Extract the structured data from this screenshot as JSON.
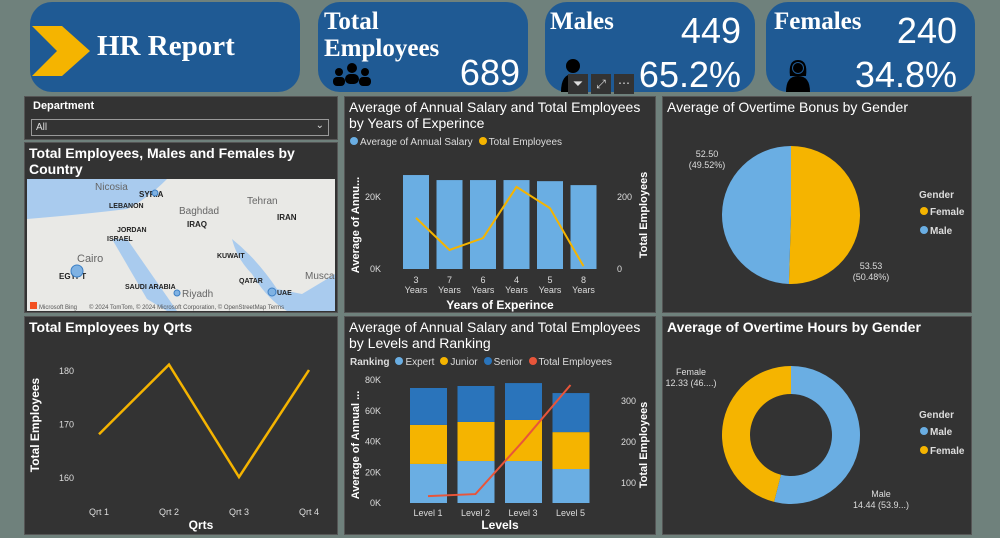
{
  "header": {
    "title": "HR Report",
    "total_label": "Total Employees",
    "total_value": "689",
    "males_label": "Males",
    "males_value": "449",
    "males_pct": "65.2%",
    "females_label": "Females",
    "females_value": "240",
    "females_pct": "34.8%"
  },
  "colors": {
    "card": "#1f5a94",
    "accent": "#f5b400",
    "light_blue": "#6aaee3",
    "dark_blue": "#2a74bb",
    "orange": "#e8553a",
    "panel": "#333333"
  },
  "slicer": {
    "label": "Department",
    "value": "All"
  },
  "map": {
    "title": "Total Employees, Males and Females by Country",
    "labels": [
      "Nicosia",
      "SYRIA",
      "LEBANON",
      "Baghdad",
      "Tehran",
      "IRAQ",
      "IRAN",
      "JORDAN",
      "ISRAEL",
      "Cairo",
      "KUWAIT",
      "EGYPT",
      "QATAR",
      "Riyadh",
      "UAE",
      "SAUDI ARABIA",
      "Musca"
    ],
    "attribution": "© 2024 TomTom, © 2024 Microsoft Corporation, © OpenStreetMap  Terms",
    "bing": "Microsoft Bing"
  },
  "visual_toolbar": [
    "filter-icon",
    "focus-mode-icon",
    "more-options-icon"
  ],
  "chart_data": [
    {
      "type": "line",
      "title": "Total Employees by Qrts",
      "xlabel": "Qrts",
      "ylabel": "Total Employees",
      "categories": [
        "Qrt 1",
        "Qrt 2",
        "Qrt 3",
        "Qrt 4"
      ],
      "values": [
        168,
        181,
        160,
        180
      ],
      "yticks": [
        "160",
        "170",
        "180"
      ],
      "ylim": [
        155,
        185
      ]
    },
    {
      "type": "bar",
      "title": "Average of Annual Salary and Total Employees by Years of Experince",
      "xlabel": "Years of Experince",
      "ylabel": "Average of Annu...",
      "y2label": "Total Employees",
      "categories": [
        "3 Years",
        "7 Years",
        "6 Years",
        "4 Years",
        "5 Years",
        "8 Years"
      ],
      "series": [
        {
          "name": "Average of Annual Salary",
          "values": [
            26100,
            24700,
            24700,
            24700,
            24400,
            23300
          ]
        },
        {
          "name": "Total Employees",
          "type": "line",
          "axis": "right",
          "values": [
            142,
            53,
            86,
            228,
            169,
            8
          ]
        }
      ],
      "yticks": [
        "0K",
        "20K"
      ],
      "y2ticks": [
        "0",
        "200"
      ],
      "ylim": [
        0,
        30000
      ],
      "y2lim": [
        0,
        300
      ],
      "legend": "top-left"
    },
    {
      "type": "bar",
      "stacked": true,
      "title": "Average of Annual Salary and Total Employees by Levels and Ranking",
      "legend_title": "Ranking",
      "xlabel": "Levels",
      "ylabel": "Average of Annual ...",
      "y2label": "Total Employees",
      "categories": [
        "Level 1",
        "Level 2",
        "Level 3",
        "Level 5"
      ],
      "series": [
        {
          "name": "Expert",
          "values": [
            25400,
            27300,
            27300,
            22100
          ]
        },
        {
          "name": "Junior",
          "values": [
            25400,
            25400,
            26700,
            24000
          ]
        },
        {
          "name": "Senior",
          "values": [
            24000,
            23400,
            24000,
            25400
          ]
        },
        {
          "name": "Total Employees",
          "type": "line",
          "axis": "right",
          "values": [
            68,
            73,
            202,
            339
          ]
        }
      ],
      "yticks": [
        "0K",
        "20K",
        "40K",
        "60K",
        "80K"
      ],
      "y2ticks": [
        "100",
        "200",
        "300"
      ],
      "ylim": [
        0,
        80000
      ],
      "legend": "top-left"
    },
    {
      "type": "pie",
      "title": "Average of Overtime Bonus by Gender",
      "legend_title": "Gender",
      "slices": [
        {
          "name": "Female",
          "value": 53.53,
          "label": "53.53",
          "pct": "(50.48%)"
        },
        {
          "name": "Male",
          "value": 52.5,
          "label": "52.50",
          "pct": "(49.52%)"
        }
      ],
      "legend": "right"
    },
    {
      "type": "pie",
      "donut": true,
      "title": "Average of Overtime Hours by Gender",
      "legend_title": "Gender",
      "slices": [
        {
          "name": "Male",
          "value": 14.44,
          "label": "Male",
          "detail": "14.44 (53.9...)"
        },
        {
          "name": "Female",
          "value": 12.33,
          "label": "Female",
          "detail": "12.33 (46....)"
        }
      ],
      "legend": "right"
    }
  ]
}
